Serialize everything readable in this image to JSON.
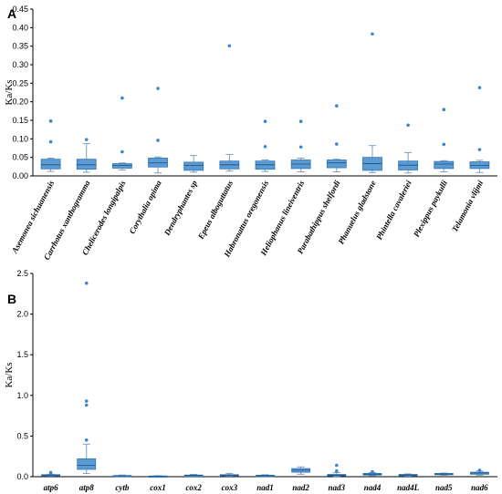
{
  "colors": {
    "box_fill": "#5b9bd5",
    "box_stroke": "#2e75b6",
    "outlier": "#3a86d0",
    "axis": "#000000"
  },
  "chart_data": [
    {
      "panel": "A",
      "type": "box",
      "ylabel": "Ka/Ks",
      "ylim": [
        0,
        0.45
      ],
      "ytick_labels": [
        "0.00",
        "0.05",
        "0.10",
        "0.15",
        "0.20",
        "0.25",
        "0.30",
        "0.35",
        "0.40",
        "0.45"
      ],
      "ytick_values": [
        0,
        0.05,
        0.1,
        0.15,
        0.2,
        0.25,
        0.3,
        0.35,
        0.4,
        0.45
      ],
      "categories": [
        "Asemonea sichuanensis",
        "Carrhotus xanthogramma",
        "Chelicerodes longipalpis",
        "Corythalia opima",
        "Dendryphantes sp",
        "Epeus alboguttatus",
        "Habronattus oregonensis",
        "Heliophanus lineiventris",
        "Parabathippus shelfordi",
        "Phanuelus gladstone",
        "Phintella cavaleriei",
        "Plexippus paykulli",
        "Telamonia vlijmi"
      ],
      "boxes": [
        {
          "q1": 0.019,
          "median": 0.03,
          "q3": 0.045,
          "whisker_low": 0.012,
          "whisker_high": 0.048,
          "outliers": [
            0.148,
            0.092
          ]
        },
        {
          "q1": 0.018,
          "median": 0.03,
          "q3": 0.045,
          "whisker_low": 0.01,
          "whisker_high": 0.087,
          "outliers": [
            0.098
          ]
        },
        {
          "q1": 0.021,
          "median": 0.028,
          "q3": 0.033,
          "whisker_low": 0.016,
          "whisker_high": 0.035,
          "outliers": [
            0.21,
            0.065
          ]
        },
        {
          "q1": 0.024,
          "median": 0.035,
          "q3": 0.048,
          "whisker_low": 0.008,
          "whisker_high": 0.051,
          "outliers": [
            0.236,
            0.096
          ]
        },
        {
          "q1": 0.015,
          "median": 0.028,
          "q3": 0.037,
          "whisker_low": 0.01,
          "whisker_high": 0.055,
          "outliers": []
        },
        {
          "q1": 0.019,
          "median": 0.03,
          "q3": 0.04,
          "whisker_low": 0.013,
          "whisker_high": 0.058,
          "outliers": [
            0.351
          ]
        },
        {
          "q1": 0.018,
          "median": 0.03,
          "q3": 0.04,
          "whisker_low": 0.012,
          "whisker_high": 0.043,
          "outliers": [
            0.147,
            0.079
          ]
        },
        {
          "q1": 0.02,
          "median": 0.032,
          "q3": 0.043,
          "whisker_low": 0.011,
          "whisker_high": 0.048,
          "outliers": [
            0.147,
            0.078
          ]
        },
        {
          "q1": 0.022,
          "median": 0.035,
          "q3": 0.043,
          "whisker_low": 0.011,
          "whisker_high": 0.045,
          "outliers": [
            0.189,
            0.086
          ]
        },
        {
          "q1": 0.015,
          "median": 0.033,
          "q3": 0.05,
          "whisker_low": 0.009,
          "whisker_high": 0.082,
          "outliers": [
            0.383
          ]
        },
        {
          "q1": 0.016,
          "median": 0.029,
          "q3": 0.04,
          "whisker_low": 0.008,
          "whisker_high": 0.063,
          "outliers": [
            0.137
          ]
        },
        {
          "q1": 0.02,
          "median": 0.032,
          "q3": 0.039,
          "whisker_low": 0.011,
          "whisker_high": 0.041,
          "outliers": [
            0.179,
            0.085
          ]
        },
        {
          "q1": 0.02,
          "median": 0.028,
          "q3": 0.038,
          "whisker_low": 0.009,
          "whisker_high": 0.042,
          "outliers": [
            0.238,
            0.071
          ]
        }
      ]
    },
    {
      "panel": "B",
      "type": "box",
      "ylabel": "Ka/Ks",
      "ylim": [
        0,
        2.5
      ],
      "ytick_labels": [
        "0.0",
        "0.5",
        "1.0",
        "1.5",
        "2.0",
        "2.5"
      ],
      "ytick_values": [
        0,
        0.5,
        1.0,
        1.5,
        2.0,
        2.5
      ],
      "categories": [
        "atp6",
        "atp8",
        "cytb",
        "cox1",
        "cox2",
        "cox3",
        "nad1",
        "nad2",
        "nad3",
        "nad4",
        "nad4L",
        "nad5",
        "nad6"
      ],
      "upright_categories": [
        "nad4L"
      ],
      "boxes": [
        {
          "q1": 0.012,
          "median": 0.018,
          "q3": 0.025,
          "whisker_low": 0.008,
          "whisker_high": 0.03,
          "outliers": [
            0.05
          ]
        },
        {
          "q1": 0.09,
          "median": 0.14,
          "q3": 0.22,
          "whisker_low": 0.04,
          "whisker_high": 0.4,
          "outliers": [
            2.38,
            0.93,
            0.88,
            0.45
          ]
        },
        {
          "q1": 0.006,
          "median": 0.01,
          "q3": 0.014,
          "whisker_low": 0.003,
          "whisker_high": 0.02,
          "outliers": []
        },
        {
          "q1": 0.004,
          "median": 0.006,
          "q3": 0.009,
          "whisker_low": 0.002,
          "whisker_high": 0.012,
          "outliers": []
        },
        {
          "q1": 0.01,
          "median": 0.015,
          "q3": 0.02,
          "whisker_low": 0.005,
          "whisker_high": 0.028,
          "outliers": []
        },
        {
          "q1": 0.012,
          "median": 0.018,
          "q3": 0.025,
          "whisker_low": 0.006,
          "whisker_high": 0.04,
          "outliers": []
        },
        {
          "q1": 0.008,
          "median": 0.012,
          "q3": 0.018,
          "whisker_low": 0.004,
          "whisker_high": 0.024,
          "outliers": []
        },
        {
          "q1": 0.055,
          "median": 0.08,
          "q3": 0.1,
          "whisker_low": 0.03,
          "whisker_high": 0.12,
          "outliers": []
        },
        {
          "q1": 0.01,
          "median": 0.018,
          "q3": 0.028,
          "whisker_low": 0.004,
          "whisker_high": 0.05,
          "outliers": [
            0.14,
            0.07
          ]
        },
        {
          "q1": 0.02,
          "median": 0.03,
          "q3": 0.04,
          "whisker_low": 0.01,
          "whisker_high": 0.05,
          "outliers": [
            0.06
          ]
        },
        {
          "q1": 0.014,
          "median": 0.02,
          "q3": 0.028,
          "whisker_low": 0.006,
          "whisker_high": 0.034,
          "outliers": []
        },
        {
          "q1": 0.025,
          "median": 0.032,
          "q3": 0.04,
          "whisker_low": 0.018,
          "whisker_high": 0.045,
          "outliers": []
        },
        {
          "q1": 0.03,
          "median": 0.045,
          "q3": 0.055,
          "whisker_low": 0.018,
          "whisker_high": 0.07,
          "outliers": [
            0.08
          ]
        }
      ]
    }
  ]
}
